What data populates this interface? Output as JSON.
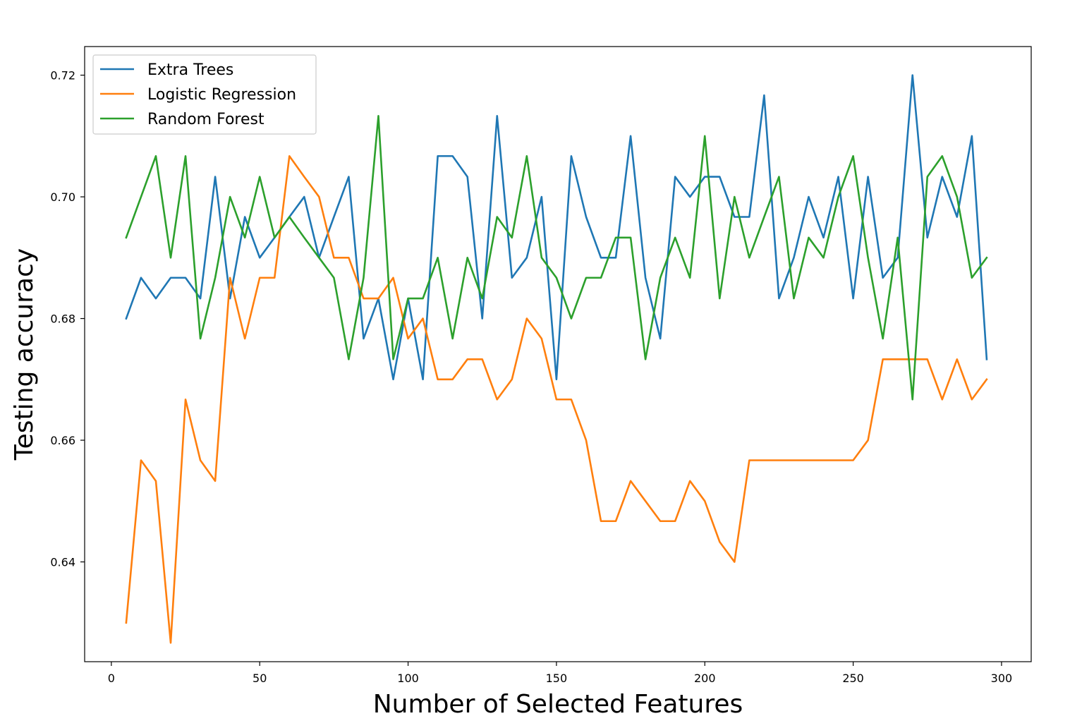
{
  "chart_data": {
    "type": "line",
    "title": "",
    "xlabel": "Number of Selected Features",
    "ylabel": "Testing accuracy",
    "xlim": [
      -9,
      310
    ],
    "ylim": [
      0.6236,
      0.7247
    ],
    "xticks": [
      0,
      50,
      100,
      150,
      200,
      250,
      300
    ],
    "yticks": [
      0.64,
      0.66,
      0.68,
      0.7,
      0.72
    ],
    "ytick_labels": [
      "0.64",
      "0.66",
      "0.68",
      "0.70",
      "0.72"
    ],
    "grid": false,
    "legend": "upper-left",
    "x": [
      5,
      10,
      15,
      20,
      25,
      30,
      35,
      40,
      45,
      50,
      55,
      60,
      65,
      70,
      75,
      80,
      85,
      90,
      95,
      100,
      105,
      110,
      115,
      120,
      125,
      130,
      135,
      140,
      145,
      150,
      155,
      160,
      165,
      170,
      175,
      180,
      185,
      190,
      195,
      200,
      205,
      210,
      215,
      220,
      225,
      230,
      235,
      240,
      245,
      250,
      255,
      260,
      265,
      270,
      275,
      280,
      285,
      290,
      295
    ],
    "series": [
      {
        "name": "Extra Trees",
        "color": "#1f77b4",
        "values": [
          0.68,
          0.6867,
          0.6833,
          0.6867,
          0.6867,
          0.6833,
          0.7033,
          0.6833,
          0.6967,
          0.69,
          0.6933,
          0.6967,
          0.7,
          0.69,
          0.6967,
          0.7033,
          0.6767,
          0.6833,
          0.67,
          0.6833,
          0.67,
          0.7067,
          0.7067,
          0.7033,
          0.68,
          0.7133,
          0.6867,
          0.69,
          0.7,
          0.67,
          0.7067,
          0.6967,
          0.69,
          0.69,
          0.71,
          0.6867,
          0.6767,
          0.7033,
          0.7,
          0.7033,
          0.7033,
          0.6967,
          0.6967,
          0.7167,
          0.6833,
          0.69,
          0.7,
          0.6933,
          0.7033,
          0.6833,
          0.7033,
          0.6867,
          0.69,
          0.72,
          0.6933,
          0.7033,
          0.6967,
          0.71,
          0.6733
        ]
      },
      {
        "name": "Logistic Regression",
        "color": "#ff7f0e",
        "values": [
          0.63,
          0.6567,
          0.6533,
          0.6267,
          0.6667,
          0.6567,
          0.6533,
          0.6867,
          0.6767,
          0.6867,
          0.6867,
          0.7067,
          0.7033,
          0.7,
          0.69,
          0.69,
          0.6833,
          0.6833,
          0.6867,
          0.6767,
          0.68,
          0.67,
          0.67,
          0.6733,
          0.6733,
          0.6667,
          0.67,
          0.68,
          0.6767,
          0.6667,
          0.6667,
          0.66,
          0.6467,
          0.6467,
          0.6533,
          0.65,
          0.6467,
          0.6467,
          0.6533,
          0.65,
          0.6433,
          0.64,
          0.6567,
          0.6567,
          0.6567,
          0.6567,
          0.6567,
          0.6567,
          0.6567,
          0.6567,
          0.66,
          0.6733,
          0.6733,
          0.6733,
          0.6733,
          0.6667,
          0.6733,
          0.6667,
          0.67
        ]
      },
      {
        "name": "Random Forest",
        "color": "#2ca02c",
        "values": [
          0.6933,
          0.7,
          0.7067,
          0.69,
          0.7067,
          0.6767,
          0.6867,
          0.7,
          0.6933,
          0.7033,
          0.6933,
          0.6967,
          0.6933,
          0.69,
          0.6867,
          0.6733,
          0.6867,
          0.7133,
          0.6733,
          0.6833,
          0.6833,
          0.69,
          0.6767,
          0.69,
          0.6833,
          0.6967,
          0.6933,
          0.7067,
          0.69,
          0.6867,
          0.68,
          0.6867,
          0.6867,
          0.6933,
          0.6933,
          0.6733,
          0.6867,
          0.6933,
          0.6867,
          0.71,
          0.6833,
          0.7,
          0.69,
          0.6967,
          0.7033,
          0.6833,
          0.6933,
          0.69,
          0.7,
          0.7067,
          0.69,
          0.6767,
          0.6933,
          0.6667,
          0.7033,
          0.7067,
          0.7,
          0.6867,
          0.69
        ]
      }
    ]
  }
}
